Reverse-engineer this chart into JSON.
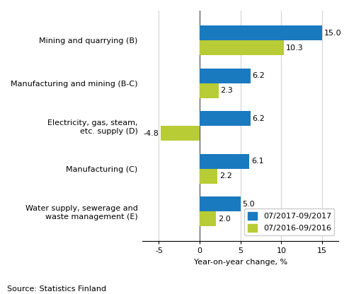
{
  "categories": [
    "Water supply, sewerage and\nwaste management (E)",
    "Manufacturing (C)",
    "Electricity, gas, steam,\netc. supply (D)",
    "Manufacturing and mining (B-C)",
    "Mining and quarrying (B)"
  ],
  "series_2017": [
    5.0,
    6.1,
    6.2,
    6.2,
    15.0
  ],
  "series_2016": [
    2.0,
    2.2,
    -4.8,
    2.3,
    10.3
  ],
  "color_2017": "#1a7abf",
  "color_2016": "#b8cc35",
  "legend_2017": "07/2017-09/2017",
  "legend_2016": "07/2016-09/2016",
  "xlabel": "Year-on-year change, %",
  "xlim": [
    -7,
    17
  ],
  "xticks": [
    -5,
    0,
    5,
    10,
    15
  ],
  "source": "Source: Statistics Finland",
  "bar_height": 0.35,
  "label_fontsize": 8,
  "tick_fontsize": 8,
  "source_fontsize": 8
}
